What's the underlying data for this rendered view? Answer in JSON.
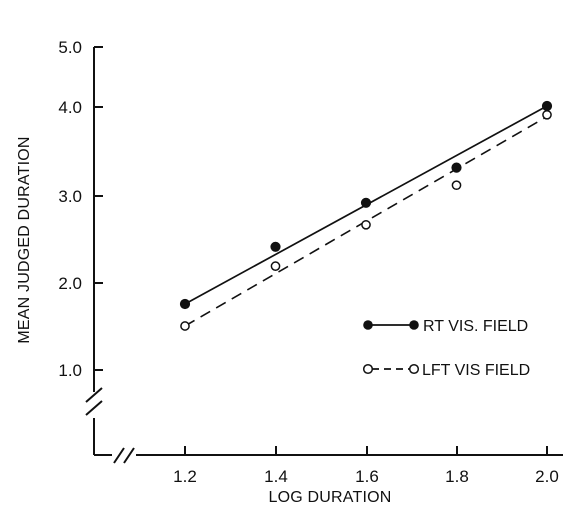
{
  "chart_data": {
    "type": "scatter",
    "title": "",
    "xlabel": "LOG DURATION",
    "ylabel": "MEAN JUDGED DURATION",
    "x_ticks": [
      "1.2",
      "1.4",
      "1.6",
      "1.8",
      "2.0"
    ],
    "x_tick_values": [
      1.2,
      1.4,
      1.6,
      1.8,
      2.0
    ],
    "y_ticks": [
      "1.0",
      "2.0",
      "3.0",
      "4.0",
      "5.0"
    ],
    "y_tick_values": [
      1.0,
      2.0,
      3.0,
      4.0,
      5.0
    ],
    "xlim": [
      1.2,
      2.0
    ],
    "ylim": [
      1.0,
      5.0
    ],
    "axis_breaks": [
      "x",
      "y"
    ],
    "grid": false,
    "legend_position": "right",
    "series": [
      {
        "name": "RT VIS. FIELD",
        "marker": "filled-circle",
        "line": "solid",
        "color": "#111111",
        "x": [
          1.2,
          1.4,
          1.6,
          1.8,
          2.0
        ],
        "y": [
          1.75,
          2.4,
          2.9,
          3.3,
          4.0
        ],
        "fit": [
          [
            1.2,
            1.75
          ],
          [
            2.0,
            4.0
          ]
        ]
      },
      {
        "name": "LFT VIS FIELD",
        "marker": "open-circle",
        "line": "dashed",
        "color": "#111111",
        "x": [
          1.2,
          1.4,
          1.6,
          1.8,
          2.0
        ],
        "y": [
          1.5,
          2.18,
          2.65,
          3.1,
          3.9
        ],
        "fit": [
          [
            1.2,
            1.5
          ],
          [
            2.0,
            3.88
          ]
        ]
      }
    ]
  }
}
